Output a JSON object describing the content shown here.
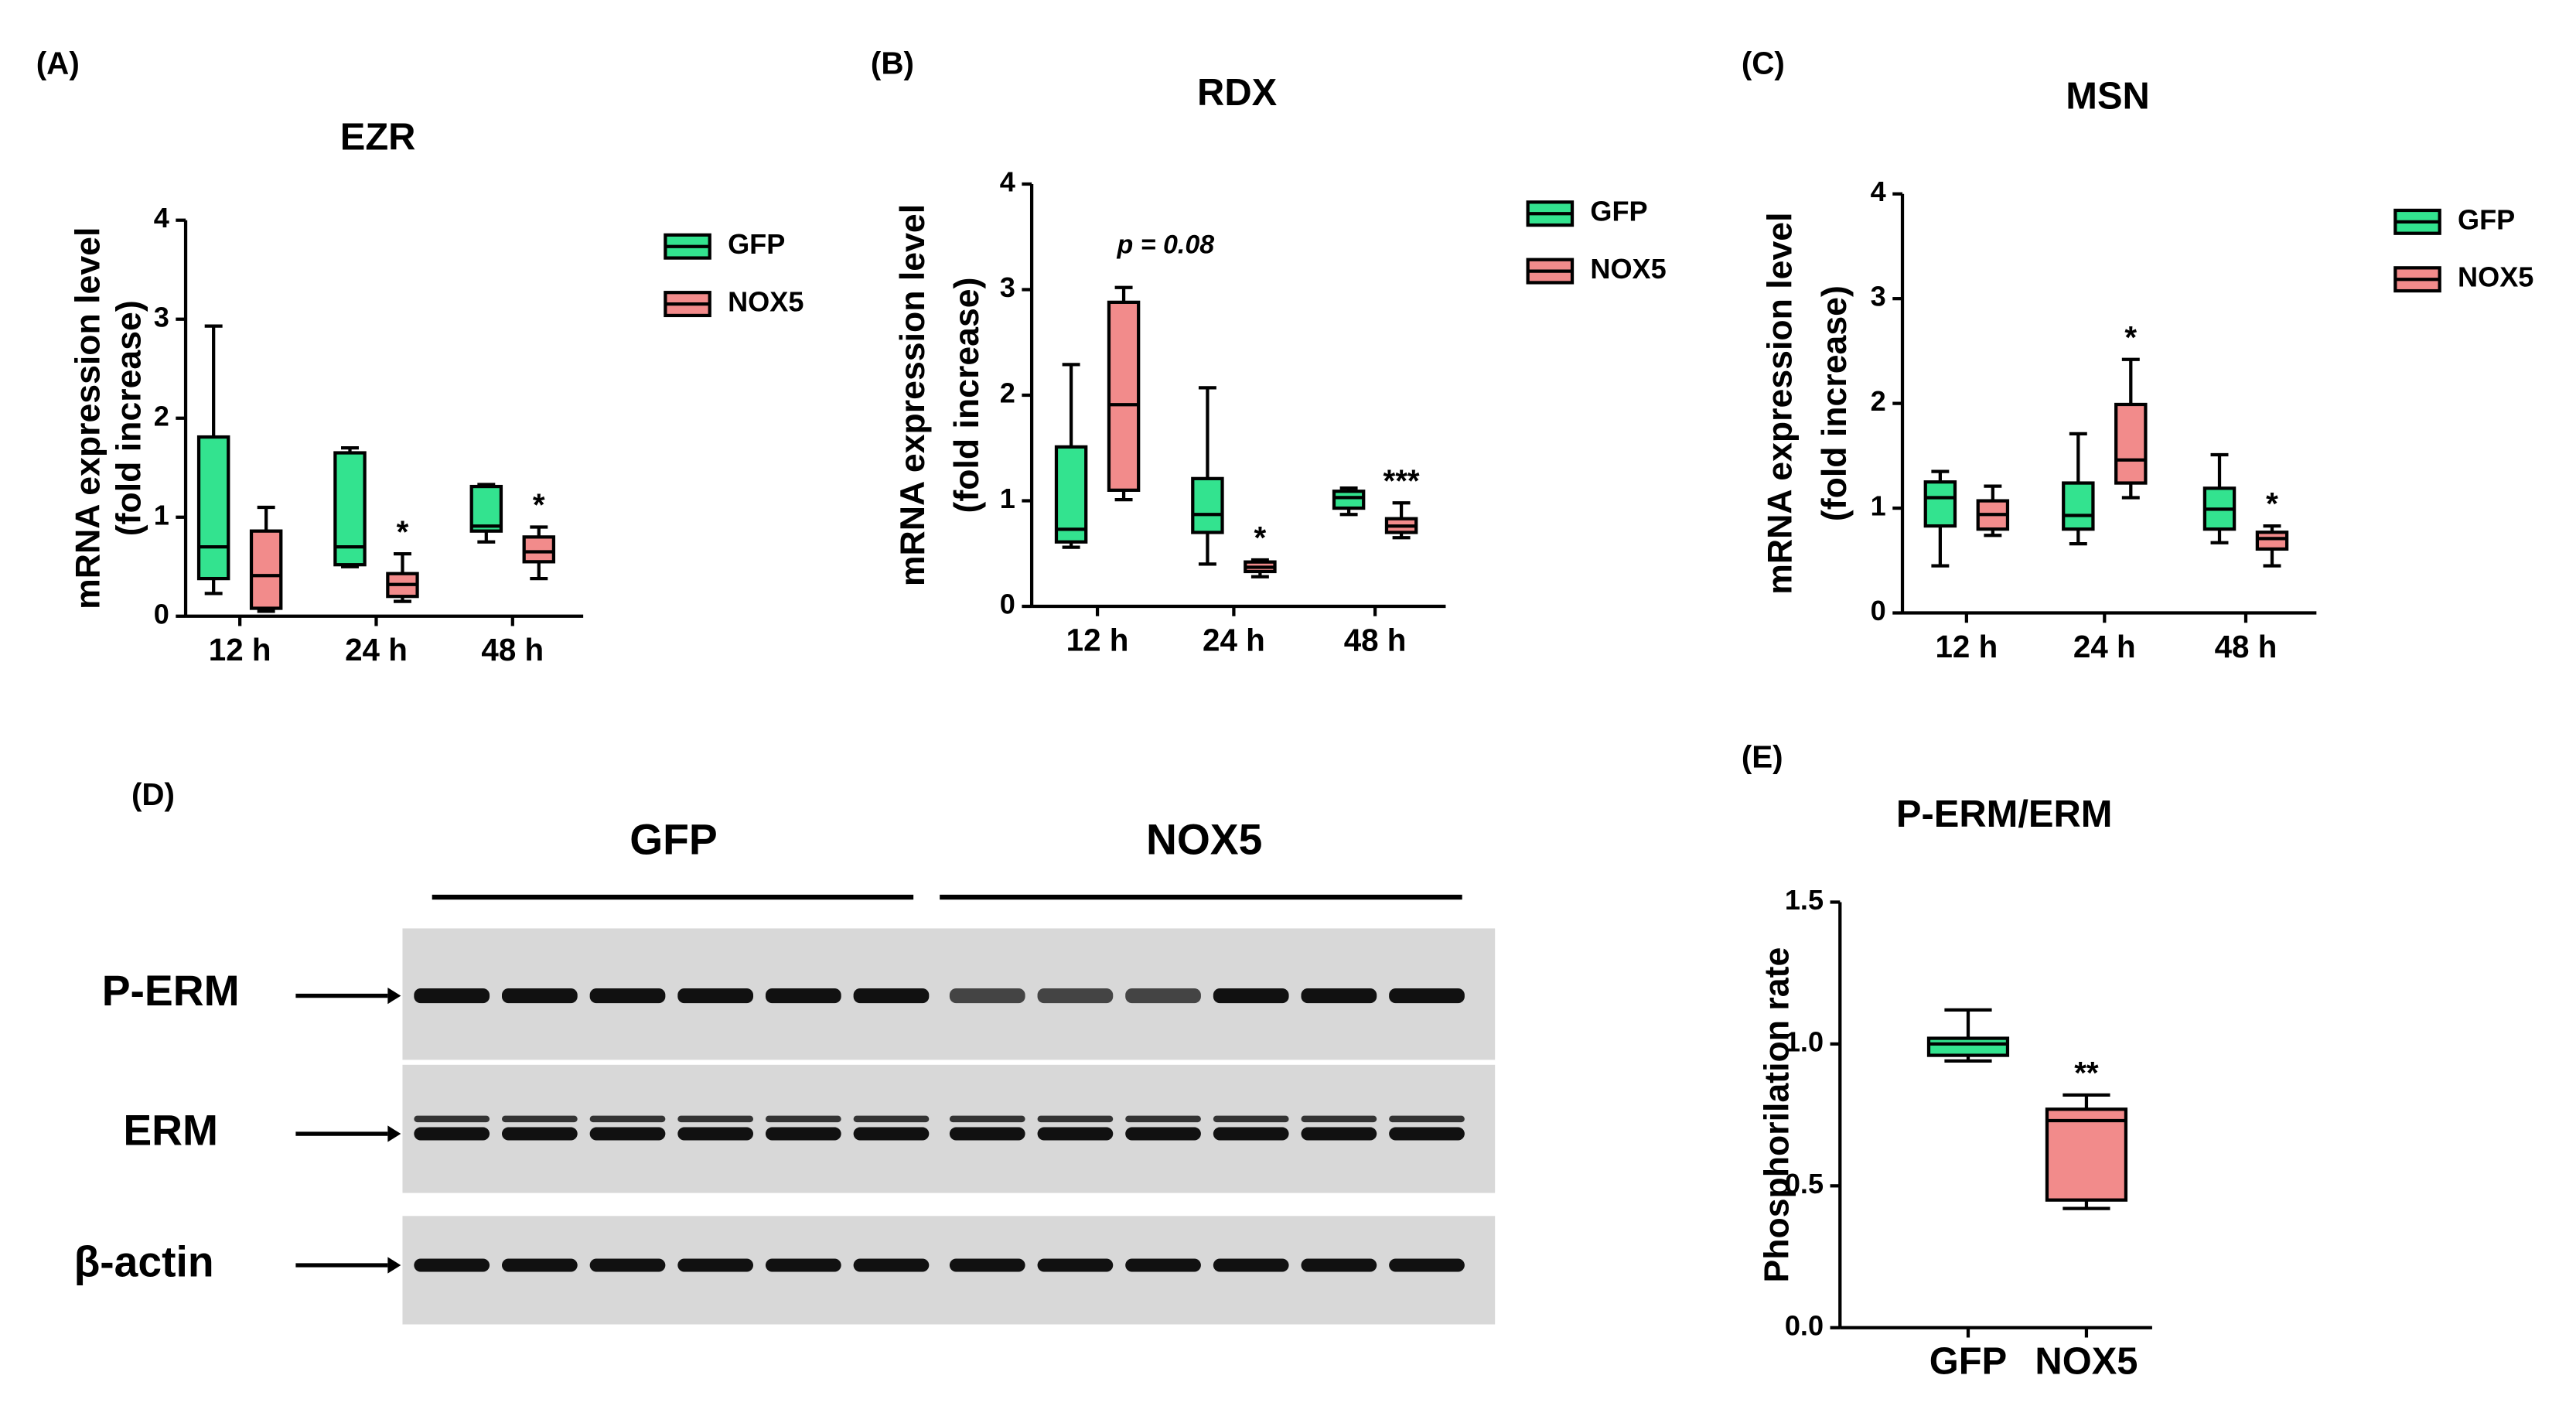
{
  "chart_data": [
    {
      "type": "box",
      "panel": "(A)",
      "title": "EZR",
      "ylabel": [
        "mRNA expression level",
        "(fold increase)"
      ],
      "categories": [
        "12 h",
        "24 h",
        "48 h"
      ],
      "ylim": [
        0,
        4
      ],
      "yticks": [
        0,
        1,
        2,
        3,
        4
      ],
      "series": [
        {
          "name": "GFP",
          "color": "#33e38f",
          "values": [
            {
              "min": 0.23,
              "q1": 0.38,
              "median": 0.7,
              "q3": 1.81,
              "max": 2.93
            },
            {
              "min": 0.5,
              "q1": 0.52,
              "median": 0.7,
              "q3": 1.65,
              "max": 1.7
            },
            {
              "min": 0.75,
              "q1": 0.86,
              "median": 0.91,
              "q3": 1.31,
              "max": 1.33
            }
          ]
        },
        {
          "name": "NOX5",
          "color": "#f28b8b",
          "values": [
            {
              "min": 0.05,
              "q1": 0.08,
              "median": 0.41,
              "q3": 0.86,
              "max": 1.1
            },
            {
              "min": 0.15,
              "q1": 0.2,
              "median": 0.32,
              "q3": 0.43,
              "max": 0.63
            },
            {
              "min": 0.38,
              "q1": 0.55,
              "median": 0.65,
              "q3": 0.8,
              "max": 0.9
            }
          ],
          "significance": [
            null,
            "*",
            "*"
          ]
        }
      ]
    },
    {
      "type": "box",
      "panel": "(B)",
      "title": "RDX",
      "ylabel": [
        "mRNA expression level",
        "(fold increase)"
      ],
      "annotation": "p = 0.08",
      "categories": [
        "12 h",
        "24 h",
        "48 h"
      ],
      "ylim": [
        0,
        4
      ],
      "yticks": [
        0,
        1,
        2,
        3,
        4
      ],
      "series": [
        {
          "name": "GFP",
          "color": "#33e38f",
          "values": [
            {
              "min": 0.56,
              "q1": 0.61,
              "median": 0.73,
              "q3": 1.51,
              "max": 2.29
            },
            {
              "min": 0.4,
              "q1": 0.7,
              "median": 0.87,
              "q3": 1.21,
              "max": 2.07
            },
            {
              "min": 0.87,
              "q1": 0.93,
              "median": 1.03,
              "q3": 1.09,
              "max": 1.12
            }
          ]
        },
        {
          "name": "NOX5",
          "color": "#f28b8b",
          "values": [
            {
              "min": 1.01,
              "q1": 1.1,
              "median": 1.91,
              "q3": 2.88,
              "max": 3.02
            },
            {
              "min": 0.28,
              "q1": 0.33,
              "median": 0.37,
              "q3": 0.42,
              "max": 0.44
            },
            {
              "min": 0.65,
              "q1": 0.7,
              "median": 0.76,
              "q3": 0.83,
              "max": 0.98
            }
          ],
          "significance": [
            null,
            "*",
            "***"
          ]
        }
      ]
    },
    {
      "type": "box",
      "panel": "(C)",
      "title": "MSN",
      "ylabel": [
        "mRNA expression level",
        "(fold increase)"
      ],
      "categories": [
        "12 h",
        "24 h",
        "48 h"
      ],
      "ylim": [
        0,
        4
      ],
      "yticks": [
        0,
        1,
        2,
        3,
        4
      ],
      "series": [
        {
          "name": "GFP",
          "color": "#33e38f",
          "values": [
            {
              "min": 0.45,
              "q1": 0.83,
              "median": 1.1,
              "q3": 1.25,
              "max": 1.35
            },
            {
              "min": 0.66,
              "q1": 0.8,
              "median": 0.93,
              "q3": 1.24,
              "max": 1.71
            },
            {
              "min": 0.67,
              "q1": 0.8,
              "median": 0.99,
              "q3": 1.19,
              "max": 1.51
            }
          ]
        },
        {
          "name": "NOX5",
          "color": "#f28b8b",
          "values": [
            {
              "min": 0.74,
              "q1": 0.8,
              "median": 0.94,
              "q3": 1.07,
              "max": 1.21
            },
            {
              "min": 1.1,
              "q1": 1.24,
              "median": 1.46,
              "q3": 1.99,
              "max": 2.42
            },
            {
              "min": 0.45,
              "q1": 0.61,
              "median": 0.71,
              "q3": 0.77,
              "max": 0.83
            }
          ],
          "significance": [
            null,
            "*",
            "*"
          ]
        }
      ]
    },
    {
      "type": "box",
      "panel": "(E)",
      "title": "P-ERM/ERM",
      "ylabel": [
        "Phosphorilation rate"
      ],
      "categories": [
        "GFP",
        "NOX5"
      ],
      "ylim": [
        0,
        1.5
      ],
      "yticks": [
        {
          "value": 0,
          "label": "0.0"
        },
        {
          "value": 0.5,
          "label": "0.5"
        },
        {
          "value": 1,
          "label": "1.0"
        },
        {
          "value": 1.5,
          "label": "1.5"
        }
      ],
      "colors": [
        "#33e38f",
        "#f28b8b"
      ],
      "values": [
        {
          "min": 0.94,
          "q1": 0.96,
          "median": 1.0,
          "q3": 1.02,
          "max": 1.12
        },
        {
          "min": 0.42,
          "q1": 0.45,
          "median": 0.73,
          "q3": 0.77,
          "max": 0.82
        }
      ],
      "significance": [
        null,
        "**"
      ]
    }
  ],
  "blot": {
    "panel": "(D)",
    "groups": [
      "GFP",
      "NOX5"
    ],
    "rows": [
      "P-ERM",
      "ERM",
      "β-actin"
    ]
  }
}
